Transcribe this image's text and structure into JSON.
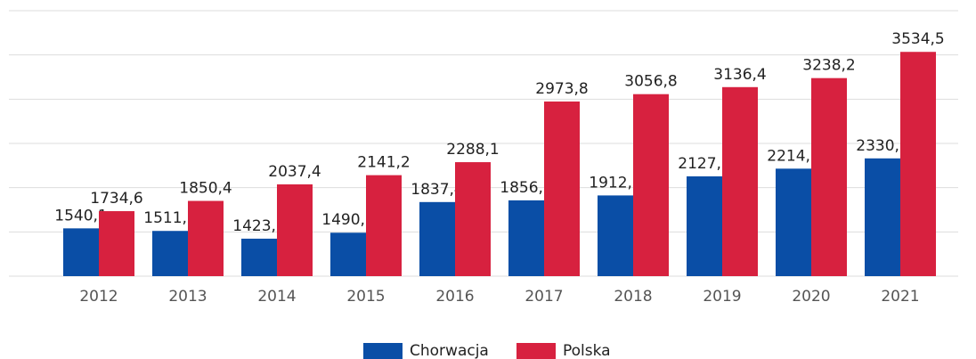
{
  "chart_data": {
    "type": "bar",
    "categories": [
      "2012",
      "2013",
      "2014",
      "2015",
      "2016",
      "2017",
      "2018",
      "2019",
      "2020",
      "2021"
    ],
    "series": [
      {
        "name": "Chorwacja",
        "color": "#0a4ea6",
        "values": [
          1540.1,
          1511.1,
          1423.6,
          1490.8,
          1837.4,
          1856.8,
          1912.1,
          2127.9,
          2214.8,
          2330.9
        ],
        "value_labels": [
          "1540,1",
          "1511,1",
          "1423,6",
          "1490,8",
          "1837,4",
          "1856,8",
          "1912,1",
          "2127,9",
          "2214,8",
          "2330,9"
        ]
      },
      {
        "name": "Polska",
        "color": "#d7213f",
        "values": [
          1734.6,
          1850.4,
          2037.4,
          2141.2,
          2288.1,
          2973.8,
          3056.8,
          3136.4,
          3238.2,
          3534.5
        ],
        "value_labels": [
          "1734,6",
          "1850,4",
          "2037,4",
          "2141,2",
          "2288,1",
          "2973,8",
          "3056,8",
          "3136,4",
          "3238,2",
          "3534,5"
        ]
      }
    ],
    "ylim": [
      1000,
      4000
    ],
    "yticks": [
      1000,
      1500,
      2000,
      2500,
      3000,
      3500,
      4000
    ],
    "grid": true,
    "legend": "bottom"
  }
}
